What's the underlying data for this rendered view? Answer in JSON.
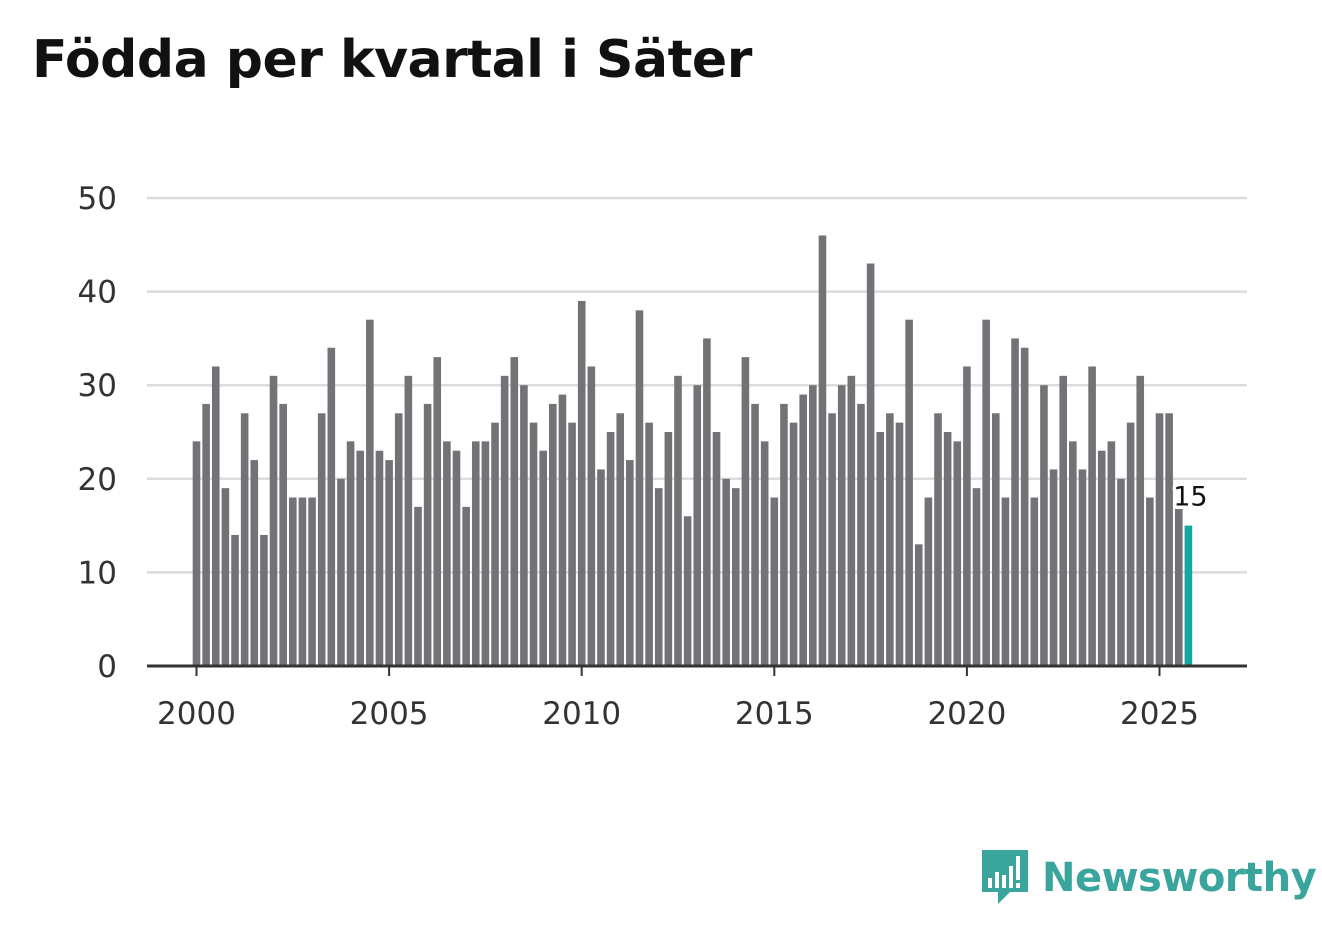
{
  "title": "Födda per kvartal i Säter",
  "brand": {
    "name": "Newsworthy",
    "icon": "newsworthy-logo-icon"
  },
  "colors": {
    "bar": "#737276",
    "highlight": "#13a79d",
    "grid": "#dcdcdc",
    "axis": "#333333",
    "brand": "#3aa59c"
  },
  "chart_data": {
    "type": "bar",
    "title": "Födda per kvartal i Säter",
    "xlabel": "",
    "ylabel": "",
    "ylim": [
      0,
      50
    ],
    "yticks": [
      "0",
      "10",
      "20",
      "30",
      "40",
      "50"
    ],
    "xticks": [
      "2000",
      "2005",
      "2010",
      "2015",
      "2020",
      "2025"
    ],
    "start_year": 2000,
    "quarters_per_year": 4,
    "values": [
      24,
      28,
      32,
      19,
      14,
      27,
      22,
      14,
      31,
      28,
      18,
      18,
      18,
      27,
      34,
      20,
      24,
      23,
      37,
      23,
      22,
      27,
      31,
      17,
      28,
      33,
      24,
      23,
      17,
      24,
      24,
      26,
      31,
      33,
      30,
      26,
      23,
      28,
      29,
      26,
      39,
      32,
      21,
      25,
      27,
      22,
      38,
      26,
      19,
      25,
      31,
      16,
      30,
      35,
      25,
      20,
      19,
      33,
      28,
      24,
      18,
      28,
      26,
      29,
      30,
      46,
      27,
      30,
      31,
      28,
      43,
      25,
      27,
      26,
      37,
      13,
      18,
      27,
      25,
      24,
      32,
      19,
      37,
      27,
      18,
      35,
      34,
      18,
      30,
      21,
      31,
      24,
      21,
      32,
      23,
      24,
      20,
      26,
      31,
      18,
      27,
      27,
      17,
      15
    ],
    "highlight_index": 103,
    "highlight_label": "15"
  }
}
